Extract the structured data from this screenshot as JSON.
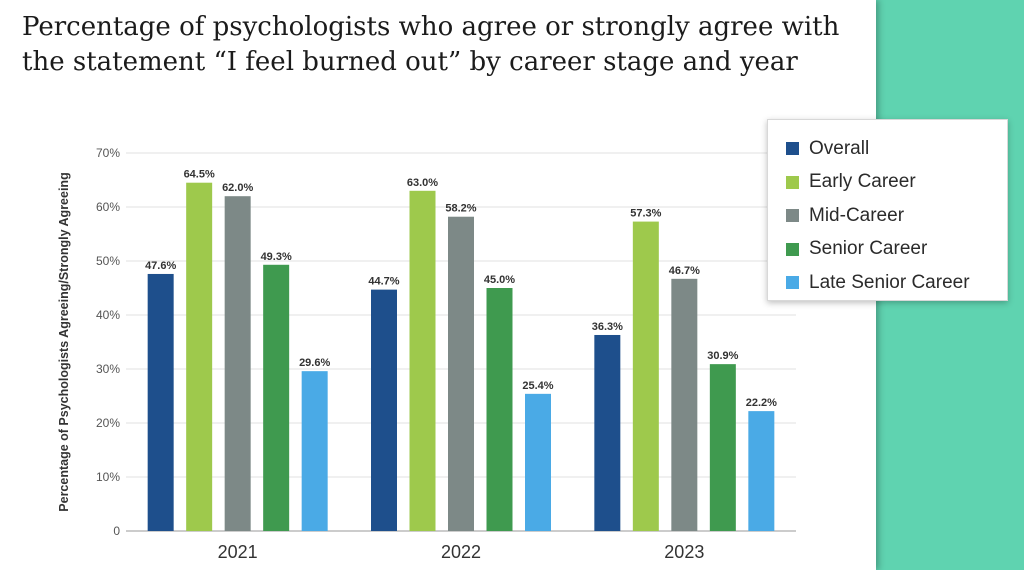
{
  "title": "Percentage of psychologists who agree or strongly agree with the statement “I feel burned out” by career stage and year",
  "chart_data": {
    "type": "bar",
    "title": "Percentage of psychologists who agree or strongly agree with the statement “I feel burned out” by career stage and year",
    "xlabel": "",
    "ylabel": "Percentage of Psychologists Agreeing/Strongly Agreeing",
    "ylim": [
      0,
      70
    ],
    "yticks": [
      "0",
      "10%",
      "20%",
      "30%",
      "40%",
      "50%",
      "60%",
      "70%"
    ],
    "grid": true,
    "legend_position": "top-right",
    "categories": [
      "2021",
      "2022",
      "2023"
    ],
    "series": [
      {
        "name": "Overall",
        "color": "#1e4f8c",
        "values": [
          47.6,
          44.7,
          36.3
        ],
        "labels": [
          "47.6%",
          "44.7%",
          "36.3%"
        ]
      },
      {
        "name": "Early Career",
        "color": "#9ec94c",
        "values": [
          64.5,
          63.0,
          57.3
        ],
        "labels": [
          "64.5%",
          "63.0%",
          "57.3%"
        ]
      },
      {
        "name": "Mid-Career",
        "color": "#7d8987",
        "values": [
          62.0,
          58.2,
          46.7
        ],
        "labels": [
          "62.0%",
          "58.2%",
          "46.7%"
        ]
      },
      {
        "name": "Senior Career",
        "color": "#3f9a4f",
        "values": [
          49.3,
          45.0,
          30.9
        ],
        "labels": [
          "49.3%",
          "45.0%",
          "30.9%"
        ]
      },
      {
        "name": "Late Senior Career",
        "color": "#4aaae6",
        "values": [
          29.6,
          25.4,
          22.2
        ],
        "labels": [
          "29.6%",
          "25.4%",
          "22.2%"
        ]
      }
    ]
  }
}
